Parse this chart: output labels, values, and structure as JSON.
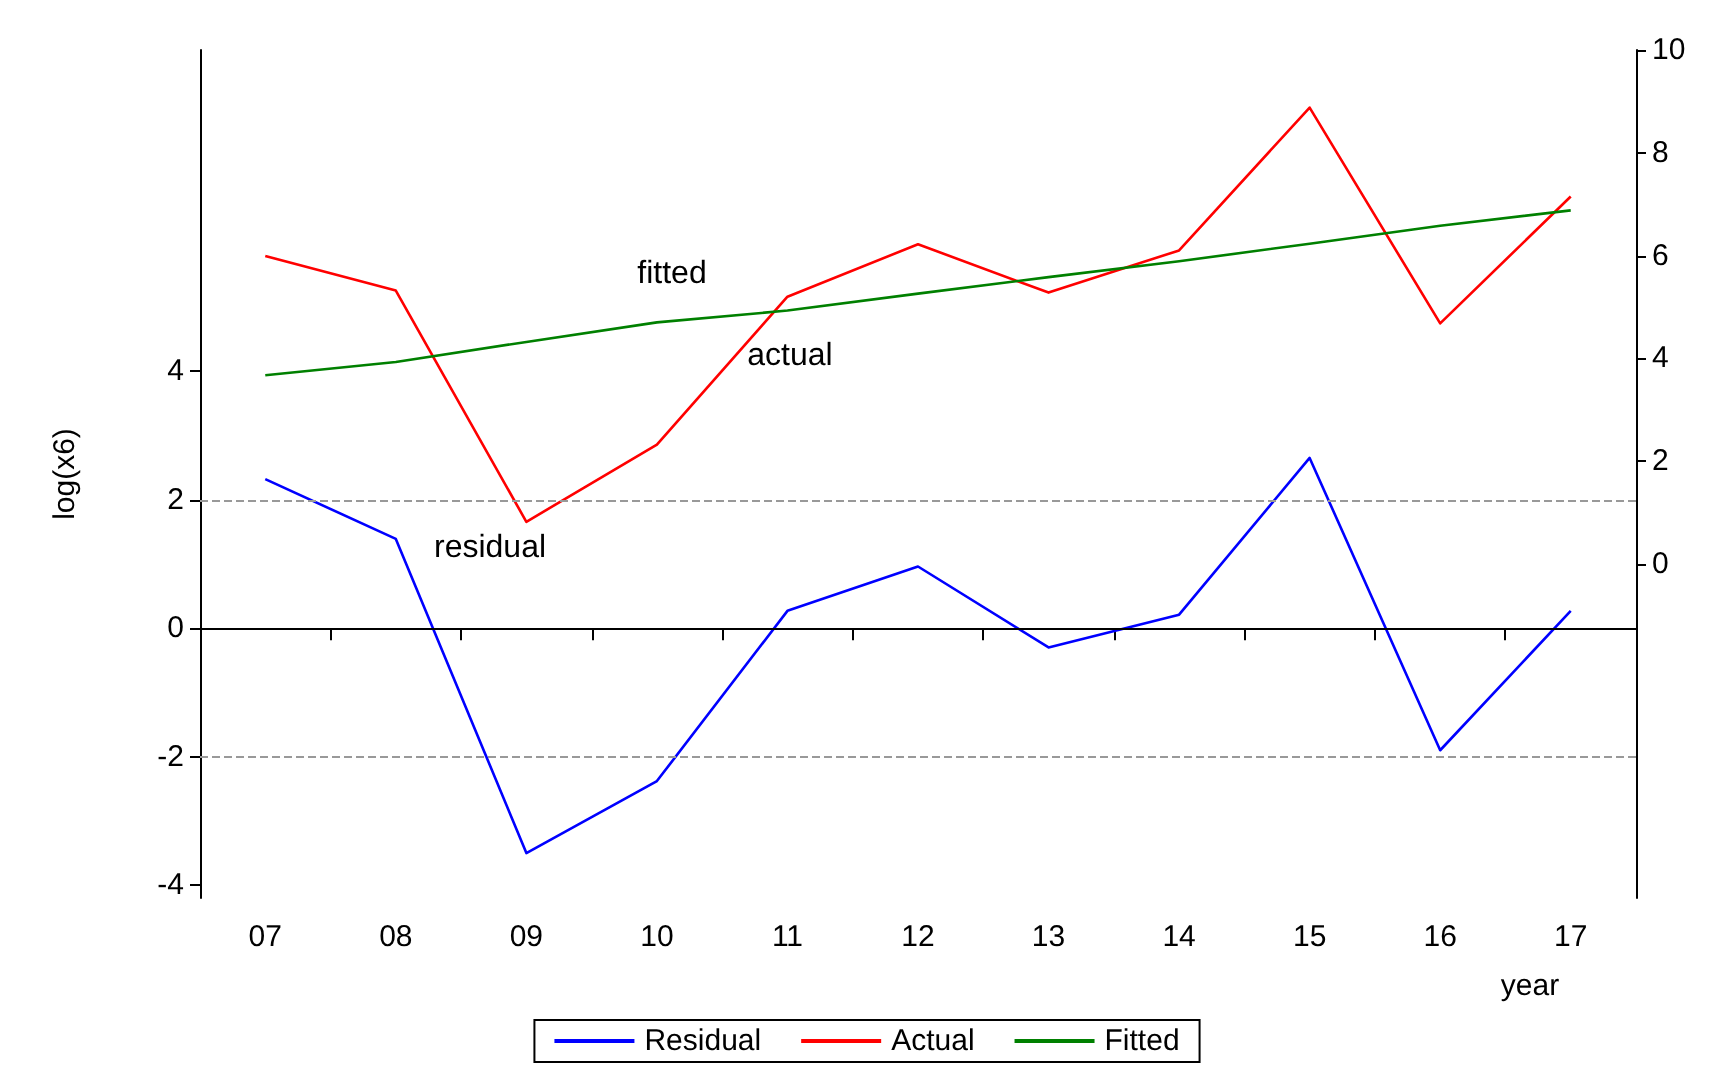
{
  "chart_data": {
    "type": "line",
    "ylabel": "log(x6)",
    "xlabel": "year",
    "categories": [
      "07",
      "08",
      "09",
      "10",
      "11",
      "12",
      "13",
      "14",
      "15",
      "16",
      "17"
    ],
    "series": [
      {
        "name": "Residual",
        "color": "#0000ff",
        "values": [
          2.32,
          1.39,
          -3.5,
          -2.38,
          0.27,
          0.96,
          -0.3,
          0.21,
          2.65,
          -1.9,
          0.27
        ]
      },
      {
        "name": "Actual",
        "color": "#ff0000",
        "axis": "y2",
        "values": [
          5.99,
          5.32,
          0.82,
          2.32,
          5.2,
          6.22,
          5.28,
          6.1,
          8.88,
          4.68,
          7.15
        ]
      },
      {
        "name": "Fitted",
        "color": "#008000",
        "axis": "y2",
        "values": [
          3.67,
          3.93,
          4.32,
          4.7,
          4.93,
          5.26,
          5.58,
          5.89,
          6.23,
          6.58,
          6.88
        ]
      }
    ],
    "ylim": [
      -4.2,
      9
    ],
    "yticks": [
      -4,
      -2,
      0,
      2,
      4
    ],
    "y2lim": [
      -6.5,
      10
    ],
    "y2ticks": [
      0,
      2,
      4,
      6,
      8,
      10
    ],
    "ref_lines": [
      {
        "axis": "y",
        "value": 0,
        "color": "#000000",
        "line_style": "solid"
      },
      {
        "axis": "y",
        "value": 2,
        "color": "#999999",
        "line_style": "dashed"
      },
      {
        "axis": "y",
        "value": -2,
        "color": "#999999",
        "line_style": "dashed"
      }
    ],
    "annotations": [
      "fitted",
      "actual",
      "residual"
    ],
    "grid": false,
    "legend": "bottom",
    "marker": "none",
    "line_style": "solid"
  }
}
